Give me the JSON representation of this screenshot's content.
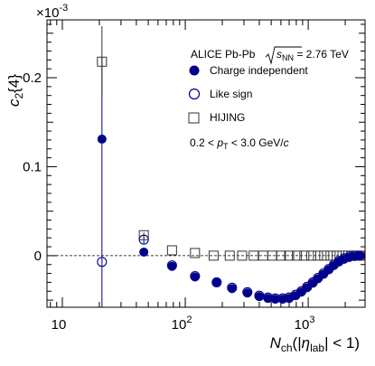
{
  "chart_data": {
    "type": "scatter",
    "ylabel": "c_2{4}",
    "y_multiplier_label": "×10",
    "y_multiplier_exp": "-3",
    "xlabel": "N_ch(|η_lab| < 1)",
    "x_scale": "log",
    "xlim": [
      7.5,
      2900
    ],
    "ylim": [
      -0.00058,
      0.00265
    ],
    "x_ticks": [
      {
        "value": 10,
        "base": "10",
        "exp": ""
      },
      {
        "value": 100,
        "base": "10",
        "exp": "2"
      },
      {
        "value": 1000,
        "base": "10",
        "exp": "3"
      }
    ],
    "y_ticks": [
      {
        "value": 0,
        "label": "0"
      },
      {
        "value": 0.001,
        "label": "0.1"
      },
      {
        "value": 0.002,
        "label": "0.2"
      }
    ],
    "reference_line_y": 0,
    "legend": {
      "header_experiment": "ALICE Pb-Pb",
      "header_energy": "s_NN = 2.76 TeV",
      "cut": "0.2 < p_T < 3.0 GeV/c",
      "placement": "top-right"
    },
    "series": [
      {
        "name": "Charge independent",
        "marker": "filled-circle",
        "color": "#00008b",
        "points": [
          {
            "x": 21,
            "y": 0.00131,
            "err": 0
          },
          {
            "x": 46,
            "y": 4e-05,
            "err": 0
          },
          {
            "x": 78,
            "y": -0.00012,
            "err": 0
          },
          {
            "x": 120,
            "y": -0.00024,
            "err": 0
          },
          {
            "x": 180,
            "y": -0.0003,
            "err": 0
          },
          {
            "x": 240,
            "y": -0.00037,
            "err": 0
          },
          {
            "x": 320,
            "y": -0.00042,
            "err": 0
          },
          {
            "x": 400,
            "y": -0.00046,
            "err": 0
          },
          {
            "x": 470,
            "y": -0.00048,
            "err": 0
          },
          {
            "x": 540,
            "y": -0.00049,
            "err": 0
          },
          {
            "x": 620,
            "y": -0.00049,
            "err": 0
          },
          {
            "x": 700,
            "y": -0.00048,
            "err": 0
          },
          {
            "x": 790,
            "y": -0.00045,
            "err": 0
          },
          {
            "x": 880,
            "y": -0.00041,
            "err": 0
          },
          {
            "x": 980,
            "y": -0.00036,
            "err": 0
          },
          {
            "x": 1090,
            "y": -0.00031,
            "err": 0
          },
          {
            "x": 1200,
            "y": -0.00026,
            "err": 0
          },
          {
            "x": 1330,
            "y": -0.00021,
            "err": 0
          },
          {
            "x": 1470,
            "y": -0.00016,
            "err": 0
          },
          {
            "x": 1620,
            "y": -0.00011,
            "err": 0
          },
          {
            "x": 1780,
            "y": -7e-05,
            "err": 0
          },
          {
            "x": 1960,
            "y": -4e-05,
            "err": 0
          },
          {
            "x": 2160,
            "y": -2e-05,
            "err": 0
          },
          {
            "x": 2380,
            "y": -1e-05,
            "err": 0
          },
          {
            "x": 2620,
            "y": 0.0,
            "err": 0
          }
        ]
      },
      {
        "name": "Like sign",
        "marker": "open-circle",
        "color": "#00008b",
        "points": [
          {
            "x": 21,
            "y": -7e-05,
            "err": 0.0023
          },
          {
            "x": 46,
            "y": 0.00018,
            "err": 5e-05
          },
          {
            "x": 78,
            "y": -0.00011,
            "err": 0
          },
          {
            "x": 120,
            "y": -0.00023,
            "err": 0
          },
          {
            "x": 180,
            "y": -0.0003,
            "err": 0
          },
          {
            "x": 240,
            "y": -0.00036,
            "err": 0
          },
          {
            "x": 320,
            "y": -0.00041,
            "err": 0
          },
          {
            "x": 400,
            "y": -0.00045,
            "err": 0
          },
          {
            "x": 470,
            "y": -0.00047,
            "err": 0
          },
          {
            "x": 540,
            "y": -0.00048,
            "err": 0
          },
          {
            "x": 620,
            "y": -0.00048,
            "err": 0
          },
          {
            "x": 700,
            "y": -0.00047,
            "err": 0
          },
          {
            "x": 790,
            "y": -0.00044,
            "err": 0
          },
          {
            "x": 880,
            "y": -0.0004,
            "err": 0
          },
          {
            "x": 980,
            "y": -0.00035,
            "err": 0
          },
          {
            "x": 1090,
            "y": -0.0003,
            "err": 0
          },
          {
            "x": 1200,
            "y": -0.00025,
            "err": 0
          },
          {
            "x": 1330,
            "y": -0.0002,
            "err": 0
          },
          {
            "x": 1470,
            "y": -0.00015,
            "err": 0
          },
          {
            "x": 1620,
            "y": -0.0001,
            "err": 0
          },
          {
            "x": 1780,
            "y": -6e-05,
            "err": 0
          },
          {
            "x": 1960,
            "y": -3e-05,
            "err": 0
          },
          {
            "x": 2160,
            "y": -1e-05,
            "err": 0
          },
          {
            "x": 2380,
            "y": 0.0,
            "err": 0
          },
          {
            "x": 2620,
            "y": 0.0,
            "err": 0
          }
        ]
      },
      {
        "name": "HIJING",
        "marker": "open-square",
        "color": "#333333",
        "points": [
          {
            "x": 21,
            "y": 0.00218,
            "err": 0.0004
          },
          {
            "x": 46,
            "y": 0.00023,
            "err": 3e-05
          },
          {
            "x": 78,
            "y": 6e-05,
            "err": 0
          },
          {
            "x": 120,
            "y": 3e-05,
            "err": 0
          },
          {
            "x": 170,
            "y": 0.0,
            "err": 0
          },
          {
            "x": 230,
            "y": 0.0,
            "err": 0
          },
          {
            "x": 290,
            "y": 0.0,
            "err": 0
          },
          {
            "x": 360,
            "y": 0.0,
            "err": 0
          },
          {
            "x": 430,
            "y": 0.0,
            "err": 0
          },
          {
            "x": 510,
            "y": 0.0,
            "err": 0
          },
          {
            "x": 600,
            "y": 0.0,
            "err": 0
          },
          {
            "x": 700,
            "y": 0.0,
            "err": 0
          },
          {
            "x": 810,
            "y": 0.0,
            "err": 0
          },
          {
            "x": 930,
            "y": 0.0,
            "err": 0
          },
          {
            "x": 1060,
            "y": 0.0,
            "err": 0
          },
          {
            "x": 1200,
            "y": 0.0,
            "err": 0
          },
          {
            "x": 1350,
            "y": 0.0,
            "err": 0
          },
          {
            "x": 1520,
            "y": 0.0,
            "err": 0
          },
          {
            "x": 1700,
            "y": 0.0,
            "err": 0
          },
          {
            "x": 1900,
            "y": 0.0,
            "err": 0
          },
          {
            "x": 2120,
            "y": 0.0,
            "err": 0
          },
          {
            "x": 2360,
            "y": 0.0,
            "err": 0
          },
          {
            "x": 2620,
            "y": 0.0,
            "err": 0
          }
        ]
      }
    ]
  }
}
